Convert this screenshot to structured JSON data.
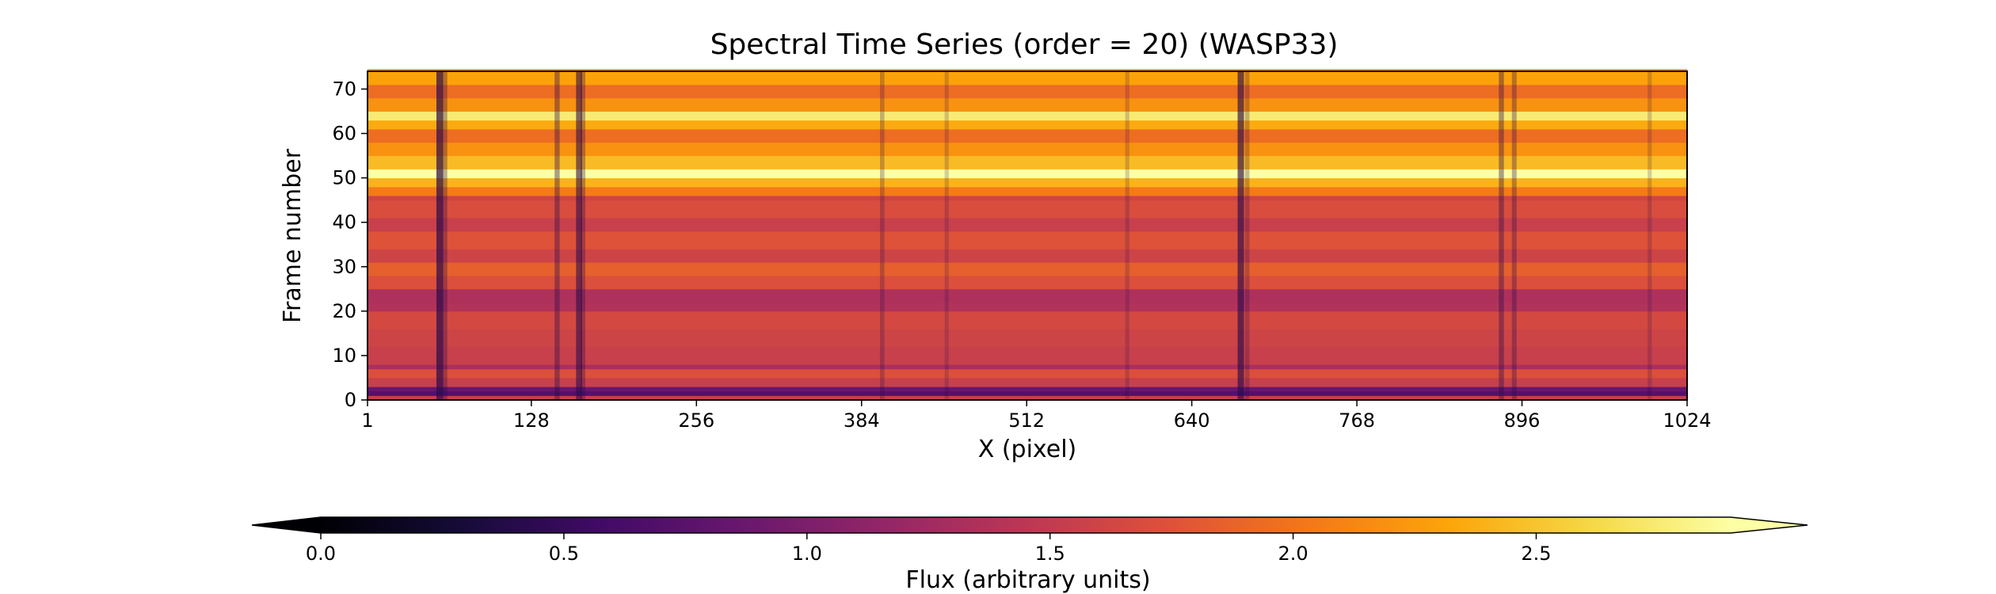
{
  "chart_data": {
    "type": "heatmap",
    "title": "Spectral Time Series (order = 20) (WASP33)",
    "xlabel": "X (pixel)",
    "ylabel": "Frame number",
    "xlim": [
      1,
      1024
    ],
    "ylim": [
      0,
      74
    ],
    "x_ticks": [
      1,
      128,
      256,
      384,
      512,
      640,
      768,
      896,
      1024
    ],
    "y_ticks": [
      0,
      10,
      20,
      30,
      40,
      50,
      60,
      70
    ],
    "colormap": "inferno",
    "grid": false,
    "frame_profile": [
      {
        "frame": 0,
        "flux": 1.52
      },
      {
        "frame": 1,
        "flux": 0.72
      },
      {
        "frame": 2,
        "flux": 0.85
      },
      {
        "frame": 3,
        "flux": 1.55
      },
      {
        "frame": 5,
        "flux": 1.72
      },
      {
        "frame": 7,
        "flux": 1.32
      },
      {
        "frame": 8,
        "flux": 1.55
      },
      {
        "frame": 12,
        "flux": 1.6
      },
      {
        "frame": 16,
        "flux": 1.65
      },
      {
        "frame": 20,
        "flux": 1.38
      },
      {
        "frame": 22,
        "flux": 1.35
      },
      {
        "frame": 25,
        "flux": 1.72
      },
      {
        "frame": 28,
        "flux": 1.85
      },
      {
        "frame": 31,
        "flux": 1.6
      },
      {
        "frame": 34,
        "flux": 1.75
      },
      {
        "frame": 38,
        "flux": 1.55
      },
      {
        "frame": 41,
        "flux": 1.7
      },
      {
        "frame": 45,
        "flux": 1.6
      },
      {
        "frame": 46,
        "flux": 2.05
      },
      {
        "frame": 48,
        "flux": 2.4
      },
      {
        "frame": 50,
        "flux": 2.9
      },
      {
        "frame": 52,
        "flux": 2.45
      },
      {
        "frame": 55,
        "flux": 2.2
      },
      {
        "frame": 58,
        "flux": 1.95
      },
      {
        "frame": 61,
        "flux": 2.35
      },
      {
        "frame": 63,
        "flux": 2.75
      },
      {
        "frame": 65,
        "flux": 2.2
      },
      {
        "frame": 68,
        "flux": 1.95
      },
      {
        "frame": 71,
        "flux": 2.3
      },
      {
        "frame": 74,
        "flux": 2.3
      }
    ],
    "absorption_lines": [
      {
        "x": 57,
        "depth": 0.55
      },
      {
        "x": 61,
        "depth": 0.25
      },
      {
        "x": 148,
        "depth": 0.3
      },
      {
        "x": 165,
        "depth": 0.45
      },
      {
        "x": 168,
        "depth": 0.25
      },
      {
        "x": 400,
        "depth": 0.2
      },
      {
        "x": 450,
        "depth": 0.15
      },
      {
        "x": 590,
        "depth": 0.15
      },
      {
        "x": 678,
        "depth": 0.5
      },
      {
        "x": 683,
        "depth": 0.2
      },
      {
        "x": 880,
        "depth": 0.3
      },
      {
        "x": 890,
        "depth": 0.25
      },
      {
        "x": 995,
        "depth": 0.15
      }
    ],
    "colorbar": {
      "label": "Flux (arbitrary units)",
      "orientation": "horizontal",
      "range": [
        0.0,
        2.9
      ],
      "extend": "both",
      "ticks": [
        "0.0",
        "0.5",
        "1.0",
        "1.5",
        "2.0",
        "2.5"
      ]
    }
  }
}
